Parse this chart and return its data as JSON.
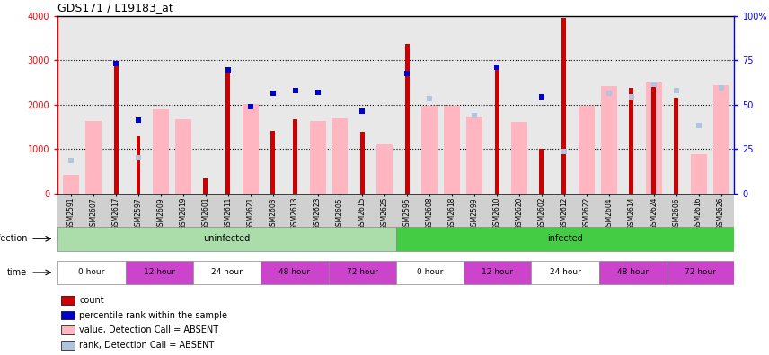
{
  "title": "GDS171 / L19183_at",
  "samples": [
    "GSM2591",
    "GSM2607",
    "GSM2617",
    "GSM2597",
    "GSM2609",
    "GSM2619",
    "GSM2601",
    "GSM2611",
    "GSM2621",
    "GSM2603",
    "GSM2613",
    "GSM2623",
    "GSM2605",
    "GSM2615",
    "GSM2625",
    "GSM2595",
    "GSM2608",
    "GSM2618",
    "GSM2599",
    "GSM2610",
    "GSM2620",
    "GSM2602",
    "GSM2612",
    "GSM2622",
    "GSM2604",
    "GSM2614",
    "GSM2624",
    "GSM2606",
    "GSM2616",
    "GSM2626"
  ],
  "count": [
    null,
    null,
    2900,
    1280,
    null,
    null,
    330,
    2730,
    null,
    1420,
    1670,
    null,
    null,
    1400,
    null,
    3380,
    null,
    null,
    null,
    2820,
    null,
    1000,
    3960,
    null,
    null,
    2380,
    2520,
    2150,
    null,
    null
  ],
  "rank": [
    null,
    null,
    2920,
    1650,
    null,
    null,
    null,
    2780,
    1960,
    2250,
    2310,
    2280,
    null,
    1850,
    null,
    2710,
    null,
    null,
    null,
    2850,
    null,
    2180,
    null,
    null,
    null,
    null,
    null,
    null,
    null,
    null
  ],
  "value_absent": [
    430,
    1640,
    null,
    null,
    1900,
    1680,
    null,
    null,
    2010,
    null,
    null,
    1640,
    1700,
    null,
    1100,
    null,
    1980,
    1980,
    1730,
    null,
    1620,
    null,
    null,
    1970,
    2430,
    null,
    2510,
    null,
    890,
    2450
  ],
  "rank_absent": [
    750,
    null,
    null,
    810,
    null,
    null,
    null,
    null,
    null,
    null,
    null,
    null,
    null,
    null,
    null,
    null,
    2130,
    null,
    1750,
    null,
    null,
    null,
    950,
    null,
    2250,
    2180,
    2470,
    2310,
    1540,
    2390
  ],
  "count_color": "#cc0000",
  "rank_color": "#0000cc",
  "value_absent_color": "#ffb6c1",
  "rank_absent_color": "#b0c4de",
  "plot_bg": "#e8e8e8",
  "xtick_bg": "#d0d0d0",
  "uninfected_color": "#aaddaa",
  "infected_color": "#44cc44",
  "time_white": "#ffffff",
  "time_purple": "#cc44cc",
  "yticks_left": [
    0,
    1000,
    2000,
    3000,
    4000
  ],
  "yticks_right": [
    0,
    25,
    50,
    75,
    100
  ]
}
